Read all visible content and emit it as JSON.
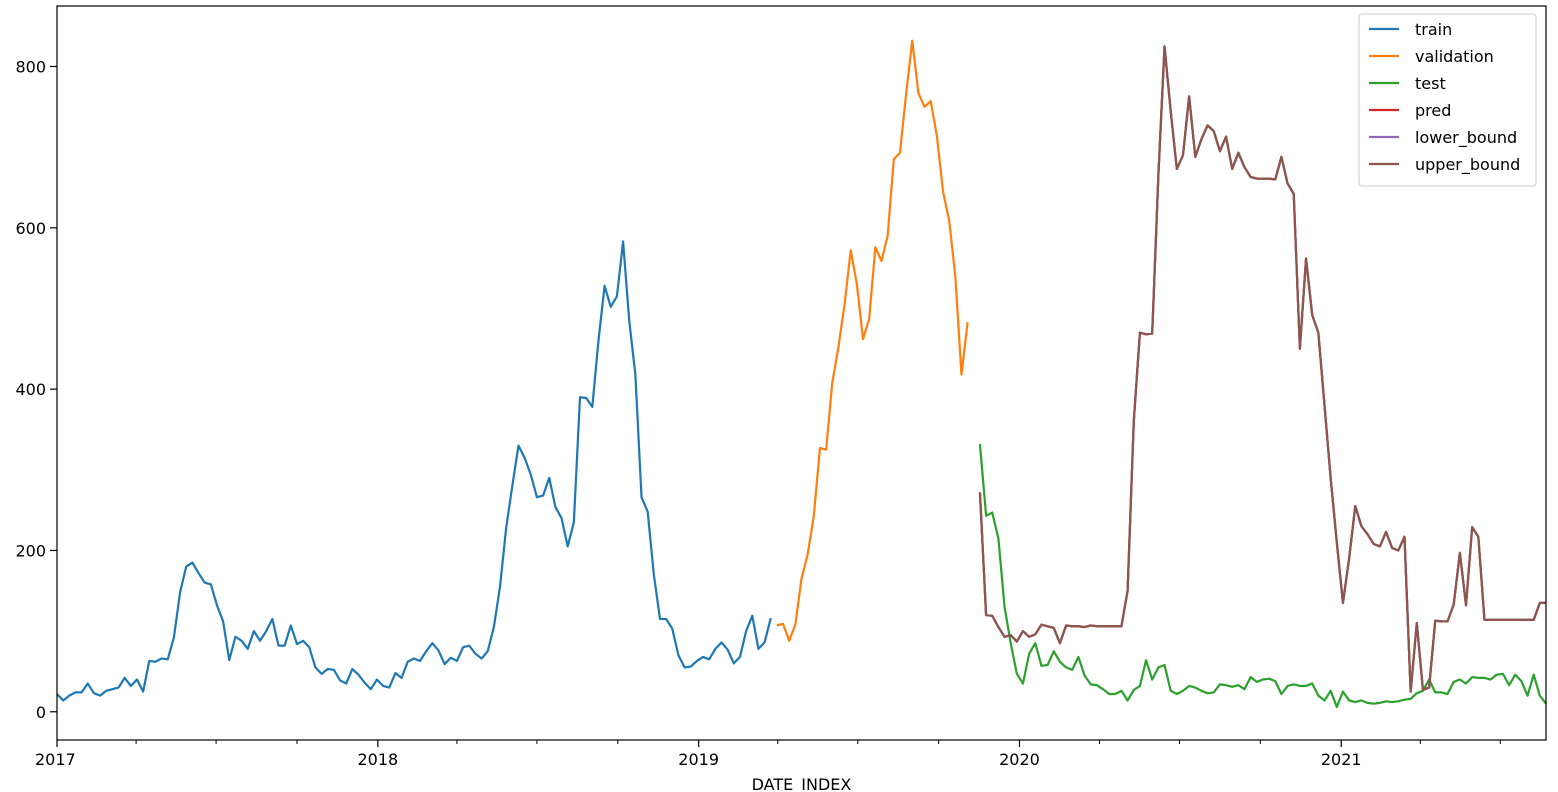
{
  "chart_data": {
    "type": "line",
    "title": "",
    "xlabel": "DATE_INDEX",
    "ylabel": "",
    "xlim": [
      "2017-01-01",
      "2021-08-22"
    ],
    "ylim": [
      -35,
      875
    ],
    "x_ticks": [
      {
        "label": "2017",
        "date": "2017-01-01"
      },
      {
        "label": "2018",
        "date": "2018-01-01"
      },
      {
        "label": "2019",
        "date": "2019-01-01"
      },
      {
        "label": "2020",
        "date": "2020-01-01"
      },
      {
        "label": "2021",
        "date": "2021-01-01"
      }
    ],
    "y_ticks": [
      0,
      200,
      400,
      600,
      800
    ],
    "grid": false,
    "legend_position": "top-right",
    "series": [
      {
        "name": "train",
        "color": "#1f77b4",
        "start": "2017-01-01",
        "step_days": 7,
        "values": [
          22,
          14,
          20,
          24,
          24,
          35,
          23,
          20,
          26,
          28,
          30,
          42,
          32,
          40,
          25,
          63,
          62,
          66,
          65,
          92,
          148,
          180,
          185,
          172,
          160,
          158,
          132,
          112,
          64,
          93,
          88,
          78,
          100,
          88,
          100,
          115,
          82,
          82,
          107,
          84,
          88,
          80,
          55,
          47,
          53,
          52,
          39,
          35,
          53,
          46,
          36,
          28,
          40,
          32,
          30,
          48,
          42,
          62,
          66,
          63,
          75,
          85,
          76,
          59,
          67,
          63,
          80,
          82,
          72,
          66,
          75,
          105,
          155,
          228,
          280,
          330,
          315,
          294,
          266,
          268,
          290,
          254,
          240,
          205,
          235,
          390,
          389,
          378,
          460,
          528,
          502,
          515,
          583,
          485,
          418,
          266,
          248,
          170,
          115,
          115,
          103,
          70,
          55,
          56,
          63,
          68,
          65,
          78,
          86,
          77,
          60,
          68,
          100,
          119,
          78,
          86,
          116
        ]
      },
      {
        "name": "validation",
        "color": "#ff7f0e",
        "start": "2019-03-31",
        "step_days": 7,
        "values": [
          107,
          109,
          88,
          108,
          165,
          195,
          243,
          327,
          325,
          408,
          452,
          505,
          572,
          530,
          462,
          487,
          576,
          559,
          590,
          685,
          693,
          766,
          832,
          767,
          750,
          757,
          714,
          645,
          609,
          540,
          418,
          483
        ]
      },
      {
        "name": "test",
        "color": "#2ca02c",
        "start": "2019-11-17",
        "step_days": 7,
        "values": [
          332,
          243,
          247,
          215,
          130,
          85,
          47,
          35,
          72,
          85,
          57,
          58,
          75,
          62,
          55,
          52,
          68,
          45,
          34,
          33,
          28,
          22,
          22,
          26,
          14,
          27,
          32,
          64,
          40,
          55,
          58,
          26,
          22,
          26,
          32,
          30,
          26,
          23,
          24,
          34,
          33,
          31,
          33,
          28,
          43,
          37,
          40,
          41,
          38,
          22,
          32,
          34,
          32,
          32,
          35,
          20,
          14,
          26,
          6,
          25,
          14,
          12,
          14,
          11,
          10,
          11,
          13,
          12,
          13,
          15,
          16,
          23,
          26,
          40,
          24,
          24,
          22,
          37,
          40,
          35,
          43,
          42,
          42,
          40,
          46,
          47,
          33,
          46,
          38,
          20,
          46,
          20,
          10
        ]
      },
      {
        "name": "pred",
        "color": "#d62728",
        "start": "2019-11-17",
        "step_days": 7,
        "values": [
          272,
          120,
          119,
          105,
          93,
          95,
          87,
          100,
          93,
          96,
          108,
          106,
          104,
          85,
          107,
          106,
          106,
          105,
          107,
          106,
          106,
          106,
          106,
          106,
          150,
          360,
          470,
          468,
          469,
          665,
          825,
          745,
          673,
          690,
          763,
          688,
          710,
          727,
          720,
          695,
          713,
          673,
          693,
          675,
          663,
          661,
          661,
          661,
          660,
          688,
          655,
          642,
          450,
          562,
          492,
          470,
          380,
          290,
          210,
          135,
          190,
          255,
          230,
          220,
          208,
          205,
          223,
          203,
          200,
          217,
          25,
          110,
          27,
          30,
          113,
          112,
          112,
          133,
          197,
          132,
          229,
          217,
          114,
          114,
          114,
          114,
          114,
          114,
          114,
          114,
          114,
          135,
          135
        ]
      },
      {
        "name": "lower_bound",
        "color": "#9467bd",
        "start": "2019-11-17",
        "step_days": 7,
        "values": [
          272,
          120,
          119,
          105,
          93,
          95,
          87,
          100,
          93,
          96,
          108,
          106,
          104,
          85,
          107,
          106,
          106,
          105,
          107,
          106,
          106,
          106,
          106,
          106,
          150,
          360,
          470,
          468,
          469,
          665,
          825,
          745,
          673,
          690,
          763,
          688,
          710,
          727,
          720,
          695,
          713,
          673,
          693,
          675,
          663,
          661,
          661,
          661,
          660,
          688,
          655,
          642,
          450,
          562,
          492,
          470,
          380,
          290,
          210,
          135,
          190,
          255,
          230,
          220,
          208,
          205,
          223,
          203,
          200,
          217,
          25,
          110,
          27,
          30,
          113,
          112,
          112,
          133,
          197,
          132,
          229,
          217,
          114,
          114,
          114,
          114,
          114,
          114,
          114,
          114,
          114,
          135,
          135
        ]
      },
      {
        "name": "upper_bound",
        "color": "#8c564b",
        "start": "2019-11-17",
        "step_days": 7,
        "values": [
          272,
          120,
          119,
          105,
          93,
          95,
          87,
          100,
          93,
          96,
          108,
          106,
          104,
          85,
          107,
          106,
          106,
          105,
          107,
          106,
          106,
          106,
          106,
          106,
          150,
          360,
          470,
          468,
          469,
          665,
          825,
          745,
          673,
          690,
          763,
          688,
          710,
          727,
          720,
          695,
          713,
          673,
          693,
          675,
          663,
          661,
          661,
          661,
          660,
          688,
          655,
          642,
          450,
          562,
          492,
          470,
          380,
          290,
          210,
          135,
          190,
          255,
          230,
          220,
          208,
          205,
          223,
          203,
          200,
          217,
          25,
          110,
          27,
          30,
          113,
          112,
          112,
          133,
          197,
          132,
          229,
          217,
          114,
          114,
          114,
          114,
          114,
          114,
          114,
          114,
          114,
          135,
          135
        ]
      }
    ]
  }
}
